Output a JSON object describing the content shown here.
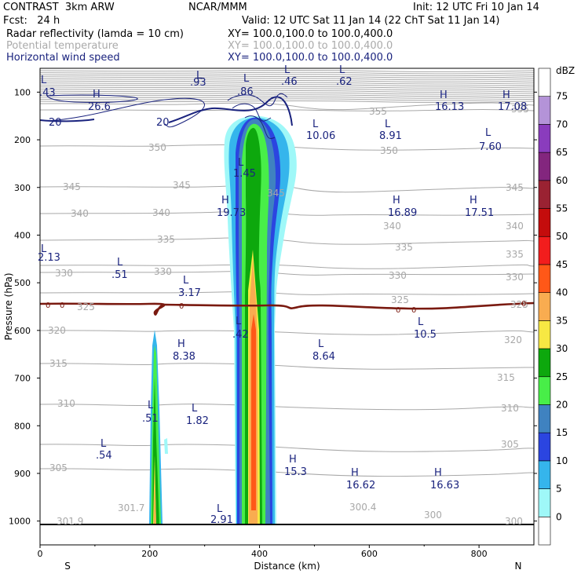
{
  "header": {
    "line1_left": "CONTRAST  3km ARW",
    "line1_mid": "NCAR/MMM",
    "line1_right": "Init: 12 UTC Fri 10 Jan 14",
    "line2_left": "Fcst:   24 h",
    "line2_right": "Valid: 12 UTC Sat 11 Jan 14 (22 ChT Sat 11 Jan 14)",
    "field1_name": "Radar reflectivity (lamda = 10 cm)",
    "field1_xy": "XY= 100.0,100.0 to 100.0,400.0",
    "field2_name": "Potential temperature",
    "field2_xy": "XY= 100.0,100.0 to 100.0,400.0",
    "field3_name": "Horizontal wind speed",
    "field3_xy": "XY= 100.0,100.0 to 100.0,400.0"
  },
  "colors": {
    "theta": "#a8a8a8",
    "wind": "#1a237e",
    "freezing": "#7a1a10"
  },
  "chart_data": {
    "type": "heatmap",
    "xlabel": "Distance (km)",
    "ylabel": "Pressure (hPa)",
    "xlim": [
      0,
      900
    ],
    "ylim": [
      1050,
      50
    ],
    "x_ticks": [
      "0",
      "200",
      "400",
      "600",
      "800"
    ],
    "y_ticks": [
      "100",
      "200",
      "300",
      "400",
      "500",
      "600",
      "700",
      "800",
      "900",
      "1000"
    ],
    "x_end_labels": {
      "left": "S",
      "right": "N"
    },
    "colorbar": {
      "unit": "dBZ",
      "levels": [
        "0",
        "5",
        "10",
        "15",
        "20",
        "25",
        "30",
        "35",
        "40",
        "45",
        "50",
        "55",
        "60",
        "65",
        "70",
        "75"
      ],
      "colors": [
        "#ffffff",
        "#9ff8f8",
        "#35b5ec",
        "#2b45e0",
        "#3f82c0",
        "#48ee48",
        "#0da80d",
        "#f7e843",
        "#f9ac50",
        "#ff5818",
        "#f21d1d",
        "#c40c0c",
        "#9a2232",
        "#83267e",
        "#8a3cbd",
        "#b493d8",
        "#ffffff"
      ]
    },
    "theta_labels": [
      "355",
      "350",
      "345",
      "340",
      "335",
      "330",
      "325",
      "320",
      "315",
      "310",
      "305",
      "301.7",
      "301.9",
      "300.4",
      "300"
    ],
    "wind_contour_labels": [
      "20"
    ],
    "freezing_level_labels": [
      "0"
    ],
    "extrema": [
      {
        "type": "L",
        "value": ".43"
      },
      {
        "type": "H",
        "value": "26.6"
      },
      {
        "type": "L",
        "value": ".93"
      },
      {
        "type": "L",
        "value": ".86"
      },
      {
        "type": "L",
        "value": ".46"
      },
      {
        "type": "L",
        "value": ".62"
      },
      {
        "type": "H",
        "value": "16.13"
      },
      {
        "type": "H",
        "value": "17.08"
      },
      {
        "type": "L",
        "value": "10.06"
      },
      {
        "type": "L",
        "value": "8.91"
      },
      {
        "type": "L",
        "value": "7.60"
      },
      {
        "type": "L",
        "value": "1.45"
      },
      {
        "type": "H",
        "value": "19.73"
      },
      {
        "type": "H",
        "value": "16.89"
      },
      {
        "type": "H",
        "value": "17.51"
      },
      {
        "type": "L",
        "value": "2.13"
      },
      {
        "type": "L",
        "value": ".51"
      },
      {
        "type": "L",
        "value": "3.17"
      },
      {
        "type": "L",
        "value": ".42"
      },
      {
        "type": "L",
        "value": "10.5"
      },
      {
        "type": "H",
        "value": "8.38"
      },
      {
        "type": "L",
        "value": "8.64"
      },
      {
        "type": "L",
        "value": ".51"
      },
      {
        "type": "L",
        "value": "1.82"
      },
      {
        "type": "L",
        "value": ".54"
      },
      {
        "type": "H",
        "value": "15.3"
      },
      {
        "type": "H",
        "value": "16.62"
      },
      {
        "type": "H",
        "value": "16.63"
      },
      {
        "type": "L",
        "value": "2.91"
      }
    ]
  }
}
